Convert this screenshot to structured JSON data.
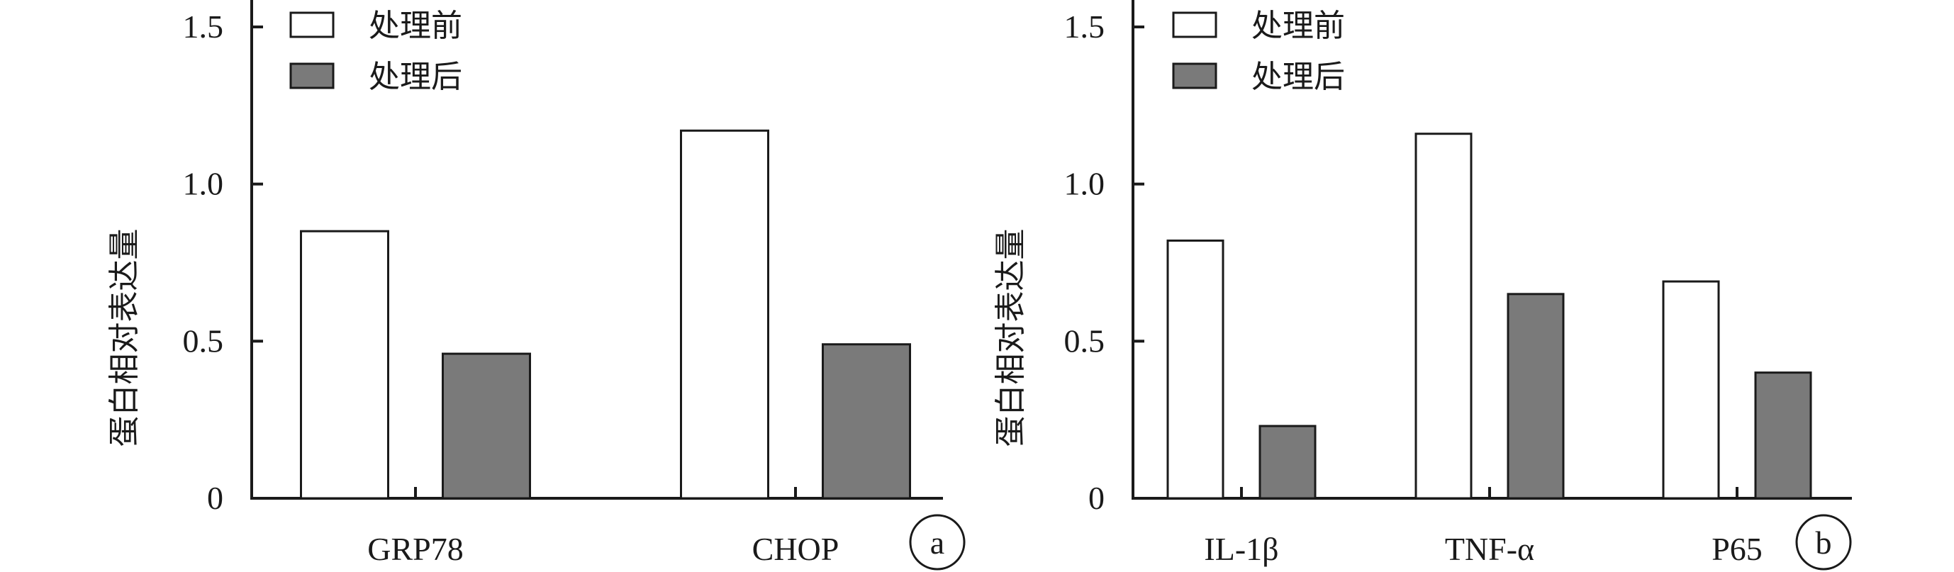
{
  "chart_data": [
    {
      "type": "bar",
      "panel_label": "a",
      "ylabel": "蛋白相对表达量",
      "ylim": [
        0,
        1.5
      ],
      "yticks": [
        "0",
        "0.5",
        "1.0",
        "1.5"
      ],
      "categories": [
        "GRP78",
        "CHOP"
      ],
      "legend_position": "top-left",
      "series": [
        {
          "name": "处理前",
          "values": [
            0.85,
            1.17
          ],
          "color": "#ffffff"
        },
        {
          "name": "处理后",
          "values": [
            0.46,
            0.49
          ],
          "color": "#7a7a7a"
        }
      ]
    },
    {
      "type": "bar",
      "panel_label": "b",
      "ylabel": "蛋白相对表达量",
      "ylim": [
        0,
        1.5
      ],
      "yticks": [
        "0",
        "0.5",
        "1.0",
        "1.5"
      ],
      "categories": [
        "IL-1β",
        "TNF-α",
        "P65"
      ],
      "legend_position": "top-left",
      "series": [
        {
          "name": "处理前",
          "values": [
            0.82,
            1.16,
            0.69
          ],
          "color": "#ffffff"
        },
        {
          "name": "处理后",
          "values": [
            0.23,
            0.65,
            0.4
          ],
          "color": "#7a7a7a"
        }
      ]
    }
  ]
}
